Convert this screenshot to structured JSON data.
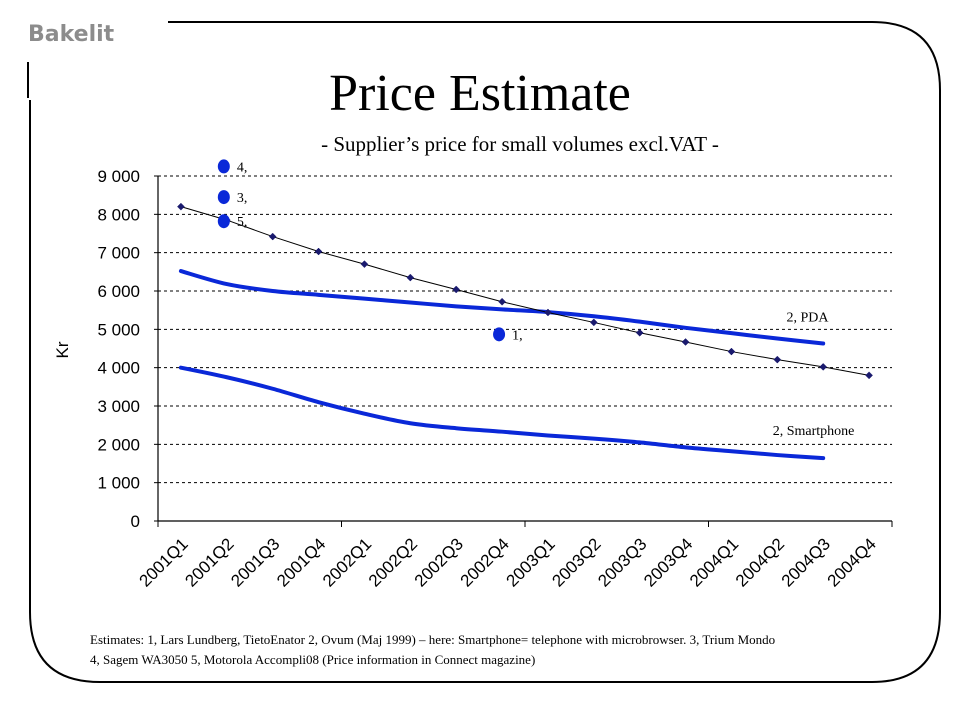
{
  "brand": "Bakelit",
  "title": "Price Estimate",
  "subtitle": "- Supplier’s price for small volumes excl.VAT -",
  "footnote": {
    "line1": "Estimates: 1, Lars Lundberg, TietoEnator  2, Ovum (Maj 1999) – here: Smartphone= telephone with microbrowser. 3, Trium Mondo",
    "line2": "4, Sagem WA3050 5, Motorola Accompli08 (Price information in Connect magazine)"
  },
  "colors": {
    "trend": "#1a1a6e",
    "estimate": "#0a28d8",
    "grid": "#000000",
    "brand": "#8c8c8c"
  },
  "chart_data": {
    "type": "line",
    "ylabel": "Kr",
    "xlabel": "",
    "ylim": [
      0,
      9000
    ],
    "yticks": [
      0,
      1000,
      2000,
      3000,
      4000,
      5000,
      6000,
      7000,
      8000,
      9000
    ],
    "ytick_labels": [
      "0",
      "1 000",
      "2 000",
      "3 000",
      "4 000",
      "5 000",
      "6 000",
      "7 000",
      "8 000",
      "9 000"
    ],
    "grid": "horizontal dashed",
    "categories": [
      "2001Q1",
      "2001Q2",
      "2001Q3",
      "2001Q4",
      "2002Q1",
      "2002Q2",
      "2002Q3",
      "2002Q4",
      "2003Q1",
      "2003Q2",
      "2003Q3",
      "2003Q4",
      "2004Q1",
      "2004Q2",
      "2004Q3",
      "2004Q4"
    ],
    "series": [
      {
        "style": "thin line with diamond markers",
        "values": [
          8200,
          7850,
          7420,
          7030,
          6700,
          6350,
          6040,
          5720,
          5440,
          5180,
          4910,
          4670,
          4420,
          4210,
          4020,
          3800
        ]
      },
      {
        "name": "2, PDA",
        "style": "thick line",
        "points": [
          [
            0,
            6520
          ],
          [
            1,
            6180
          ],
          [
            2,
            6000
          ],
          [
            3,
            5900
          ],
          [
            4,
            5800
          ],
          [
            5,
            5700
          ],
          [
            6,
            5600
          ],
          [
            7,
            5520
          ],
          [
            8,
            5450
          ],
          [
            9,
            5340
          ],
          [
            10,
            5200
          ],
          [
            11,
            5040
          ],
          [
            12,
            4900
          ],
          [
            13,
            4760
          ],
          [
            14,
            4630
          ]
        ]
      },
      {
        "name": "2, Smartphone",
        "style": "thick line",
        "points": [
          [
            0,
            4000
          ],
          [
            1,
            3750
          ],
          [
            2,
            3450
          ],
          [
            3,
            3100
          ],
          [
            4,
            2800
          ],
          [
            5,
            2550
          ],
          [
            6,
            2420
          ],
          [
            7,
            2330
          ],
          [
            8,
            2230
          ],
          [
            9,
            2150
          ],
          [
            10,
            2050
          ],
          [
            11,
            1920
          ],
          [
            12,
            1820
          ],
          [
            13,
            1720
          ],
          [
            14,
            1640
          ]
        ]
      }
    ],
    "estimates": [
      {
        "label": "4,",
        "x": 1,
        "y": 9250
      },
      {
        "label": "3,",
        "x": 1,
        "y": 8450
      },
      {
        "label": "5,",
        "x": 1,
        "y": 7820
      },
      {
        "label": "1,",
        "x": 7,
        "y": 4870
      }
    ],
    "annotations": [
      {
        "text": "2, PDA",
        "x": 13.2,
        "y": 5200
      },
      {
        "text": "2, Smartphone",
        "x": 12.9,
        "y": 2250
      }
    ]
  }
}
